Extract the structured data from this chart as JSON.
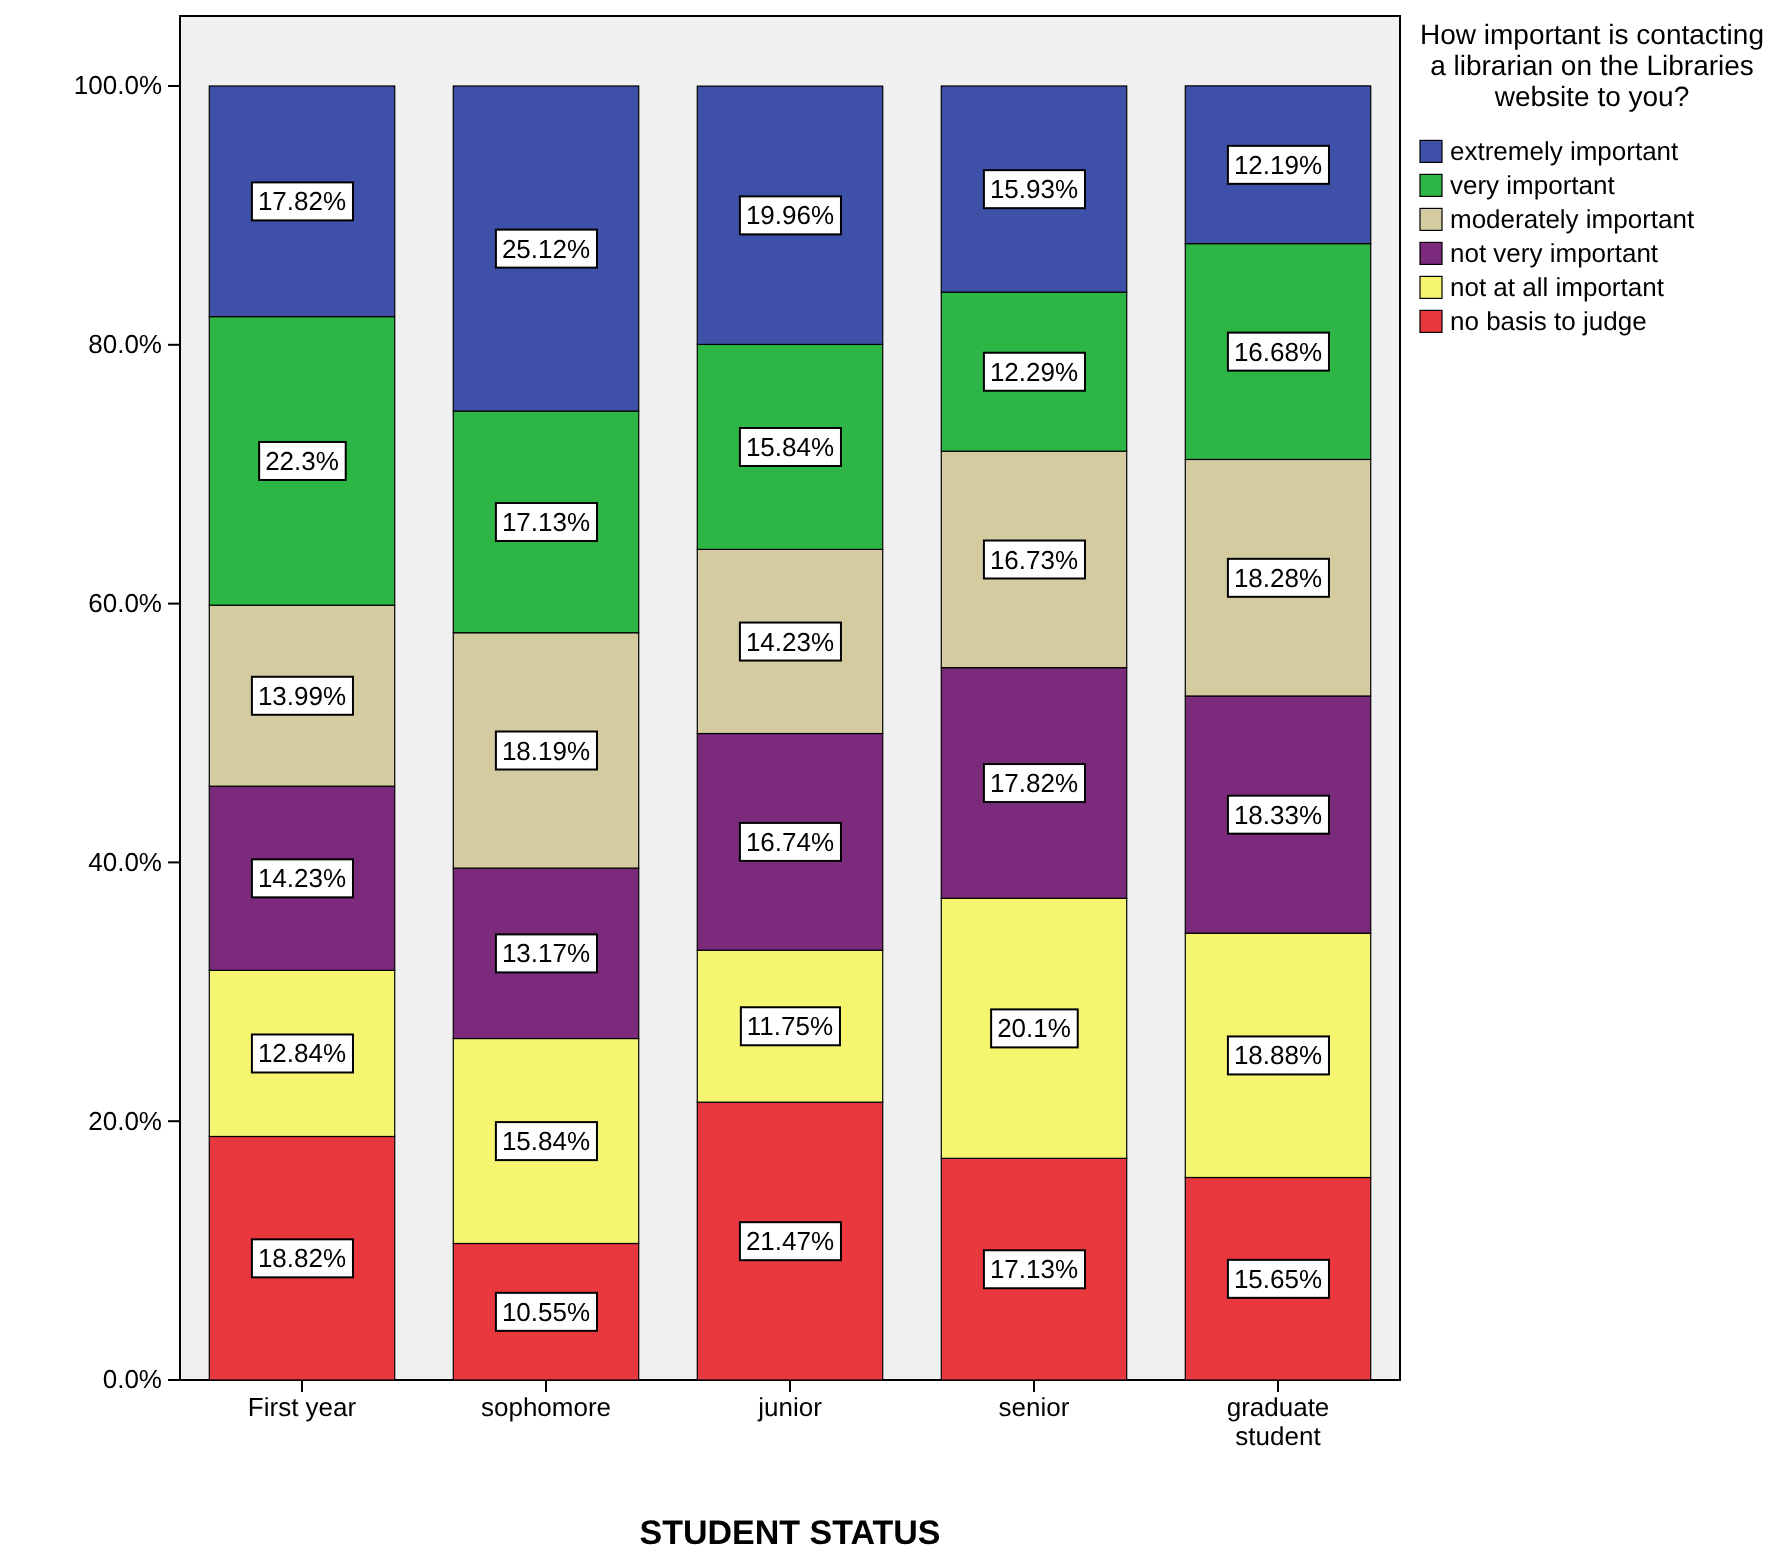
{
  "chart_data": {
    "type": "bar",
    "stacked": true,
    "xlabel": "STUDENT STATUS",
    "legend_title": "How important is contacting a librarian on the Libraries website to you?",
    "legend": "right",
    "grid": false,
    "categories": [
      "First year",
      "sophomore",
      "junior",
      "senior",
      "graduate student"
    ],
    "ylim": [
      0,
      100
    ],
    "yticks": [
      {
        "value": 0,
        "label": "0.0%"
      },
      {
        "value": 20,
        "label": "20.0%"
      },
      {
        "value": 40,
        "label": "40.0%"
      },
      {
        "value": 60,
        "label": "60.0%"
      },
      {
        "value": 80,
        "label": "80.0%"
      },
      {
        "value": 100,
        "label": "100.0%"
      }
    ],
    "series": [
      {
        "name": "no basis to judge",
        "color": "#e8383d",
        "values": [
          18.82,
          10.55,
          21.47,
          17.13,
          15.65
        ],
        "value_labels": [
          "18.82%",
          "10.55%",
          "21.47%",
          "17.13%",
          "15.65%"
        ]
      },
      {
        "name": "not at all important",
        "color": "#f5f56f",
        "values": [
          12.84,
          15.84,
          11.75,
          20.1,
          18.88
        ],
        "value_labels": [
          "12.84%",
          "15.84%",
          "11.75%",
          "20.1%",
          "18.88%"
        ]
      },
      {
        "name": "not very important",
        "color": "#7b2a7c",
        "values": [
          14.23,
          13.17,
          16.74,
          17.82,
          18.33
        ],
        "value_labels": [
          "14.23%",
          "13.17%",
          "16.74%",
          "17.82%",
          "18.33%"
        ]
      },
      {
        "name": "moderately important",
        "color": "#d4cca0",
        "values": [
          13.99,
          18.19,
          14.23,
          16.73,
          18.28
        ],
        "value_labels": [
          "13.99%",
          "18.19%",
          "14.23%",
          "16.73%",
          "18.28%"
        ]
      },
      {
        "name": "very important",
        "color": "#2db545",
        "values": [
          22.3,
          17.13,
          15.84,
          12.29,
          16.68
        ],
        "value_labels": [
          "22.3%",
          "17.13%",
          "15.84%",
          "12.29%",
          "16.68%"
        ]
      },
      {
        "name": "extremely important",
        "color": "#3e50a8",
        "values": [
          17.82,
          25.12,
          19.96,
          15.93,
          12.19
        ],
        "value_labels": [
          "17.82%",
          "25.12%",
          "19.96%",
          "15.93%",
          "12.19%"
        ]
      }
    ]
  }
}
